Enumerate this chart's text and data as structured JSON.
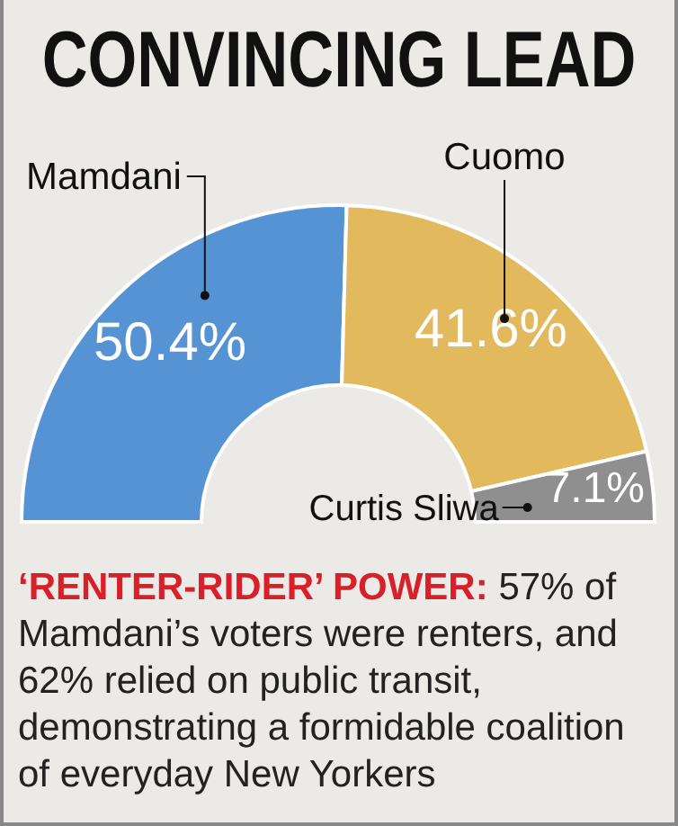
{
  "chart_data": {
    "type": "donut",
    "title": "CONVINCING LEAD",
    "categories": [
      "Mamdani",
      "Cuomo",
      "Curtis Sliwa"
    ],
    "values": [
      50.4,
      41.6,
      7.1
    ],
    "value_labels": [
      "50.4%",
      "41.6%",
      "7.1%"
    ],
    "colors": [
      "#5593d4",
      "#e2b95c",
      "#8f8f8f"
    ],
    "annotations": [
      "‘RENTER-RIDER’ POWER:",
      "57% of Mamdani’s voters were renters, and 62% relied on public transit, demonstrating a formidable coalition of everyday New Yorkers"
    ]
  }
}
